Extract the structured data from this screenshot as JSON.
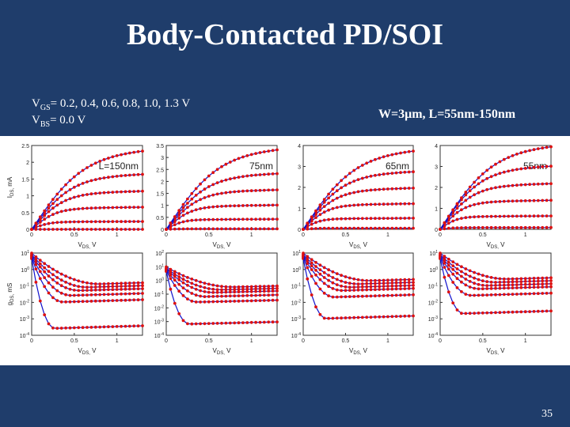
{
  "slide": {
    "title": "Body-Contacted PD/SOI",
    "vgs_label": "V",
    "vgs_sub": "GS",
    "vgs_values": "= 0.2, 0.4, 0.6, 0.8, 1.0, 1.3 V",
    "vbs_label": "V",
    "vbs_sub": "BS",
    "vbs_values": "= 0.0 V",
    "geometry": "W=3μm, L=55nm-150nm",
    "page_number": "35"
  },
  "colors": {
    "background": "#1f3d6b",
    "measured": "#dd1111",
    "model": "#1010cc"
  },
  "chart_data": [
    {
      "type": "line",
      "panel": "ids",
      "annotation": "L=150nm",
      "ylabel": "I_DS, mA",
      "xlabel": "V_DS, V",
      "xlim": [
        0,
        1.3
      ],
      "ylim": [
        0,
        2.5
      ],
      "xticks": [
        "0",
        "0.5",
        "1"
      ],
      "yticks": [
        "0",
        "0.5",
        "1",
        "1.5",
        "2",
        "2.5"
      ],
      "series": [
        {
          "vgs": 0.2,
          "isat": 0.0
        },
        {
          "vgs": 0.4,
          "isat": 0.22
        },
        {
          "vgs": 0.6,
          "isat": 0.62
        },
        {
          "vgs": 0.8,
          "isat": 1.07
        },
        {
          "vgs": 1.0,
          "isat": 1.55
        },
        {
          "vgs": 1.3,
          "isat": 2.25
        }
      ]
    },
    {
      "type": "line",
      "panel": "ids",
      "annotation": "75nm",
      "ylabel": "",
      "xlabel": "V_DS, V",
      "xlim": [
        0,
        1.3
      ],
      "ylim": [
        0,
        3.5
      ],
      "xticks": [
        "0",
        "0.5",
        "1"
      ],
      "yticks": [
        "0",
        "0.5",
        "1",
        "1.5",
        "2",
        "2.5",
        "3",
        "3.5"
      ],
      "series": [
        {
          "vgs": 0.2,
          "isat": 0.02
        },
        {
          "vgs": 0.4,
          "isat": 0.4
        },
        {
          "vgs": 0.6,
          "isat": 0.95
        },
        {
          "vgs": 0.8,
          "isat": 1.55
        },
        {
          "vgs": 1.0,
          "isat": 2.2
        },
        {
          "vgs": 1.3,
          "isat": 3.2
        }
      ]
    },
    {
      "type": "line",
      "panel": "ids",
      "annotation": "65nm",
      "ylabel": "",
      "xlabel": "V_DS, V",
      "xlim": [
        0,
        1.3
      ],
      "ylim": [
        0,
        4
      ],
      "xticks": [
        "0",
        "0.5",
        "1"
      ],
      "yticks": [
        "0",
        "1",
        "2",
        "3",
        "4"
      ],
      "series": [
        {
          "vgs": 0.2,
          "isat": 0.05
        },
        {
          "vgs": 0.4,
          "isat": 0.5
        },
        {
          "vgs": 0.6,
          "isat": 1.15
        },
        {
          "vgs": 0.8,
          "isat": 1.85
        },
        {
          "vgs": 1.0,
          "isat": 2.6
        },
        {
          "vgs": 1.3,
          "isat": 3.6
        }
      ]
    },
    {
      "type": "line",
      "panel": "ids",
      "annotation": "55nm",
      "ylabel": "",
      "xlabel": "V_DS, V",
      "xlim": [
        0,
        1.3
      ],
      "ylim": [
        0,
        4
      ],
      "xticks": [
        "0",
        "0.5",
        "1"
      ],
      "yticks": [
        "0",
        "1",
        "2",
        "3",
        "4"
      ],
      "series": [
        {
          "vgs": 0.2,
          "isat": 0.08
        },
        {
          "vgs": 0.4,
          "isat": 0.6
        },
        {
          "vgs": 0.6,
          "isat": 1.3
        },
        {
          "vgs": 0.8,
          "isat": 2.05
        },
        {
          "vgs": 1.0,
          "isat": 2.85
        },
        {
          "vgs": 1.3,
          "isat": 3.8
        }
      ]
    },
    {
      "type": "line",
      "panel": "gds",
      "annotation": "",
      "ylabel": "g_DS, mS",
      "xlabel": "V_DS, V",
      "yscale": "log",
      "xlim": [
        0,
        1.3
      ],
      "ylim_exp": [
        -4,
        1
      ],
      "xticks": [
        "0",
        "0.5",
        "1"
      ],
      "yticks": [
        "10^1",
        "10^0",
        "10^-1",
        "10^-2",
        "10^-3",
        "10^-4"
      ],
      "series": [
        {
          "vgs": 0.2,
          "log_sat": -3.6
        },
        {
          "vgs": 0.4,
          "log_sat": -2.0
        },
        {
          "vgs": 0.6,
          "log_sat": -1.6
        },
        {
          "vgs": 0.8,
          "log_sat": -1.3
        },
        {
          "vgs": 1.0,
          "log_sat": -1.1
        },
        {
          "vgs": 1.3,
          "log_sat": -0.9
        }
      ]
    },
    {
      "type": "line",
      "panel": "gds",
      "annotation": "",
      "ylabel": "",
      "xlabel": "V_DS, V",
      "yscale": "log",
      "xlim": [
        0,
        1.3
      ],
      "ylim_exp": [
        -4,
        2
      ],
      "xticks": [
        "0",
        "0.5",
        "1"
      ],
      "yticks": [
        "10^2",
        "10^1",
        "10^0",
        "10^-1",
        "10^-2",
        "10^-3",
        "10^-4"
      ],
      "series": [
        {
          "vgs": 0.2,
          "log_sat": -3.2
        },
        {
          "vgs": 0.4,
          "log_sat": -1.6
        },
        {
          "vgs": 0.6,
          "log_sat": -1.2
        },
        {
          "vgs": 0.8,
          "log_sat": -0.9
        },
        {
          "vgs": 1.0,
          "log_sat": -0.7
        },
        {
          "vgs": 1.3,
          "log_sat": -0.5
        }
      ]
    },
    {
      "type": "line",
      "panel": "gds",
      "annotation": "",
      "ylabel": "",
      "xlabel": "V_DS, V",
      "yscale": "log",
      "xlim": [
        0,
        1.3
      ],
      "ylim_exp": [
        -4,
        1
      ],
      "xticks": [
        "0",
        "0.5",
        "1"
      ],
      "yticks": [
        "10^1",
        "10^0",
        "10^-1",
        "10^-2",
        "10^-3",
        "10^-4"
      ],
      "series": [
        {
          "vgs": 0.2,
          "log_sat": -3.0
        },
        {
          "vgs": 0.4,
          "log_sat": -1.7
        },
        {
          "vgs": 0.6,
          "log_sat": -1.3
        },
        {
          "vgs": 0.8,
          "log_sat": -1.1
        },
        {
          "vgs": 1.0,
          "log_sat": -0.9
        },
        {
          "vgs": 1.3,
          "log_sat": -0.7
        }
      ]
    },
    {
      "type": "line",
      "panel": "gds",
      "annotation": "",
      "ylabel": "",
      "xlabel": "V_DS, V",
      "yscale": "log",
      "xlim": [
        0,
        1.3
      ],
      "ylim_exp": [
        -4,
        1
      ],
      "xticks": [
        "0",
        "0.5",
        "1"
      ],
      "yticks": [
        "10^1",
        "10^0",
        "10^-1",
        "10^-2",
        "10^-3",
        "10^-4"
      ],
      "series": [
        {
          "vgs": 0.2,
          "log_sat": -2.7
        },
        {
          "vgs": 0.4,
          "log_sat": -1.6
        },
        {
          "vgs": 0.6,
          "log_sat": -1.2
        },
        {
          "vgs": 0.8,
          "log_sat": -1.0
        },
        {
          "vgs": 1.0,
          "log_sat": -0.8
        },
        {
          "vgs": 1.3,
          "log_sat": -0.6
        }
      ]
    }
  ]
}
